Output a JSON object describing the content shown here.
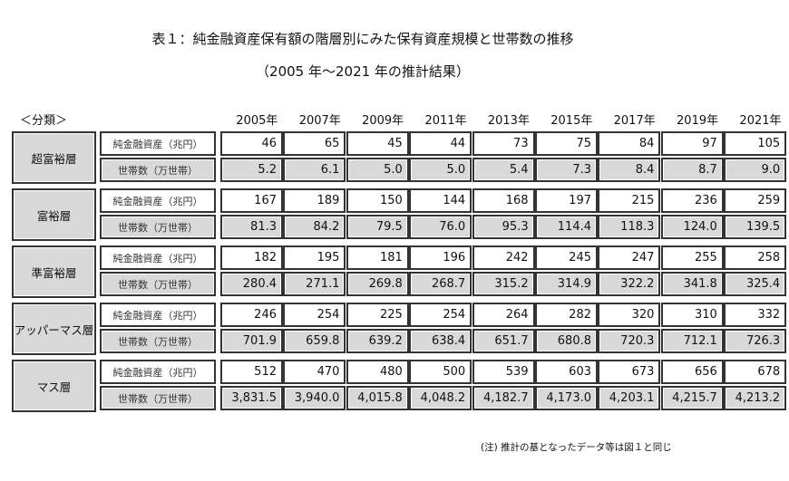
{
  "title": "表１：純金融資産保有額の階層別にみた保有資産規模と世帯数の推移",
  "subtitle": "（2005 年〜2021 年の推計結果）",
  "classification_label": "＜分類＞",
  "years": [
    "2005年",
    "2007年",
    "2009年",
    "2011年",
    "2013年",
    "2015年",
    "2017年",
    "2019年",
    "2021年"
  ],
  "metrics": {
    "assets": "純金融資産（兆円）",
    "households": "世帯数（万世帯）"
  },
  "groups": [
    {
      "name": "超富裕層",
      "assets": [
        "46",
        "65",
        "45",
        "44",
        "73",
        "75",
        "84",
        "97",
        "105"
      ],
      "households": [
        "5.2",
        "6.1",
        "5.0",
        "5.0",
        "5.4",
        "7.3",
        "8.4",
        "8.7",
        "9.0"
      ]
    },
    {
      "name": "富裕層",
      "assets": [
        "167",
        "189",
        "150",
        "144",
        "168",
        "197",
        "215",
        "236",
        "259"
      ],
      "households": [
        "81.3",
        "84.2",
        "79.5",
        "76.0",
        "95.3",
        "114.4",
        "118.3",
        "124.0",
        "139.5"
      ]
    },
    {
      "name": "準富裕層",
      "assets": [
        "182",
        "195",
        "181",
        "196",
        "242",
        "245",
        "247",
        "255",
        "258"
      ],
      "households": [
        "280.4",
        "271.1",
        "269.8",
        "268.7",
        "315.2",
        "314.9",
        "322.2",
        "341.8",
        "325.4"
      ]
    },
    {
      "name": "アッパーマス層",
      "assets": [
        "246",
        "254",
        "225",
        "254",
        "264",
        "282",
        "320",
        "310",
        "332"
      ],
      "households": [
        "701.9",
        "659.8",
        "639.2",
        "638.4",
        "651.7",
        "680.8",
        "720.3",
        "712.1",
        "726.3"
      ]
    },
    {
      "name": "マス層",
      "assets": [
        "512",
        "470",
        "480",
        "500",
        "539",
        "603",
        "673",
        "656",
        "678"
      ],
      "households": [
        "3,831.5",
        "3,940.0",
        "4,015.8",
        "4,048.2",
        "4,182.7",
        "4,173.0",
        "4,203.1",
        "4,215.7",
        "4,213.2"
      ]
    }
  ],
  "note": "(注) 推計の基となったデータ等は図１と同じ"
}
